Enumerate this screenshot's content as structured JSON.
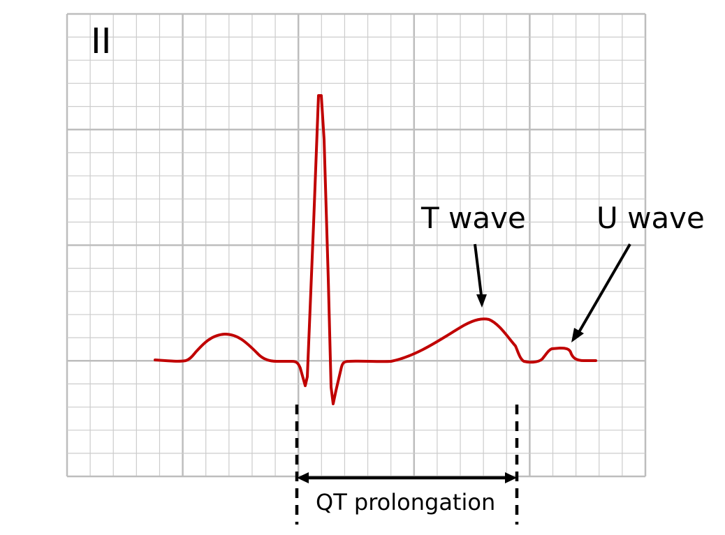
{
  "lead": "II",
  "annotations": {
    "t_wave": "T wave",
    "u_wave": "U wave",
    "qt_interval": "QT prolongation"
  },
  "colors": {
    "trace": "#c00000",
    "grid_minor": "#cccccc",
    "grid_major": "#bdbdbd",
    "annotation": "#000000"
  }
}
